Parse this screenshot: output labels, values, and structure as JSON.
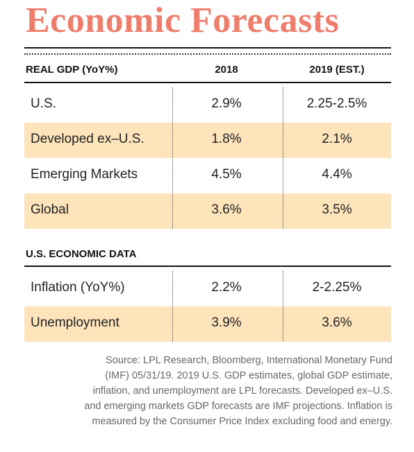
{
  "header": {
    "title": "Economic Forecasts"
  },
  "gdp_table": {
    "columns": [
      "REAL GDP (YoY%)",
      "2018",
      "2019 (EST.)"
    ],
    "rows": [
      [
        "U.S.",
        "2.9%",
        "2.25-2.5%"
      ],
      [
        "Developed ex–U.S.",
        "1.8%",
        "2.1%"
      ],
      [
        "Emerging Markets",
        "4.5%",
        "4.4%"
      ],
      [
        "Global",
        "3.6%",
        "3.5%"
      ]
    ]
  },
  "economic_table": {
    "title": "U.S. ECONOMIC DATA",
    "rows": [
      [
        "Inflation (YoY%)",
        "2.2%",
        "2-2.25%"
      ],
      [
        "Unemployment",
        "3.9%",
        "3.6%"
      ]
    ]
  },
  "source": [
    "Source: LPL Research, Bloomberg, International Monetary Fund",
    "(IMF) 05/31/19. 2019 U.S. GDP estimates, global GDP estimate,",
    "inflation, and unemployment are LPL forecasts. Developed ex–U.S.",
    "and emerging markets GDP forecasts are IMF projections. Inflation is",
    "measured by the Consumer Price Index excluding food and energy."
  ]
}
